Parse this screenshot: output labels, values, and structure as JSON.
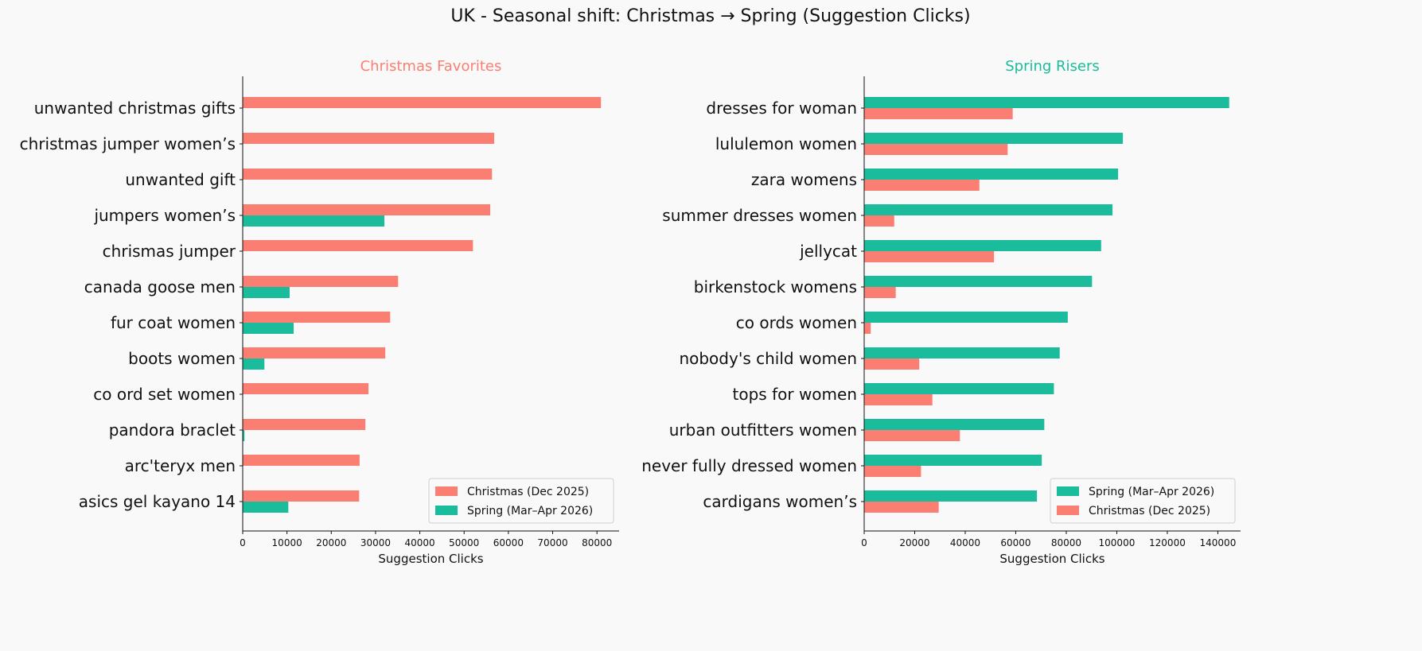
{
  "title": "UK - Seasonal shift: Christmas → Spring (Suggestion Clicks)",
  "colors": {
    "christmas": "#fa7f72",
    "spring": "#1abc9c",
    "title_left": "#fa7f72",
    "title_right": "#1abc9c"
  },
  "chart_data": [
    {
      "type": "bar",
      "orientation": "horizontal",
      "title": "Christmas Favorites",
      "xlabel": "Suggestion Clicks",
      "xlim": [
        0,
        85000
      ],
      "xticks": [
        0,
        10000,
        20000,
        30000,
        40000,
        50000,
        60000,
        70000,
        80000
      ],
      "legend": "bottom-right",
      "grid": false,
      "categories": [
        "unwanted christmas gifts",
        "christmas jumper women’s",
        "unwanted gift",
        "jumpers women’s",
        "chrismas jumper",
        "canada goose men",
        "fur coat women",
        "boots women",
        "co ord set women",
        "pandora braclet",
        "arc'teryx men",
        "asics gel kayano 14"
      ],
      "series": [
        {
          "name": "Christmas (Dec 2025)",
          "color": "#fa7f72",
          "values": [
            80900,
            56800,
            56300,
            55900,
            52000,
            35100,
            33300,
            32200,
            28400,
            27700,
            26400,
            26300
          ]
        },
        {
          "name": "Spring (Mar–Apr 2026)",
          "color": "#1abc9c",
          "values": [
            0,
            0,
            0,
            32000,
            0,
            10600,
            11500,
            4900,
            0,
            400,
            0,
            10300
          ]
        }
      ]
    },
    {
      "type": "bar",
      "orientation": "horizontal",
      "title": "Spring Risers",
      "xlabel": "Suggestion Clicks",
      "xlim": [
        0,
        149000
      ],
      "xticks": [
        0,
        20000,
        40000,
        60000,
        80000,
        100000,
        120000,
        140000
      ],
      "legend": "bottom-right",
      "grid": false,
      "categories": [
        "dresses for woman",
        "lululemon women",
        "zara womens",
        "summer dresses women",
        "jellycat",
        "birkenstock womens",
        "co ords women",
        "nobody's child women",
        "tops for women",
        "urban outfitters women",
        "never fully dressed women",
        "cardigans women’s"
      ],
      "series": [
        {
          "name": "Spring (Mar–Apr 2026)",
          "color": "#1abc9c",
          "values": [
            144500,
            102400,
            100500,
            98300,
            93800,
            90200,
            80600,
            77400,
            75100,
            71300,
            70300,
            68400
          ]
        },
        {
          "name": "Christmas (Dec 2025)",
          "color": "#fa7f72",
          "values": [
            58800,
            56800,
            45600,
            11900,
            51400,
            12500,
            2600,
            21800,
            27000,
            37900,
            22500,
            29500
          ]
        }
      ]
    }
  ]
}
